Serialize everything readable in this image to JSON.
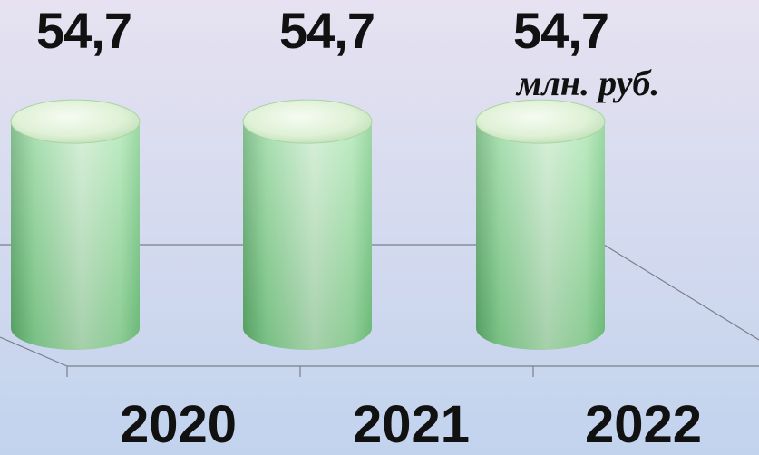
{
  "chart_data": {
    "type": "bar",
    "categories": [
      "2020",
      "2021",
      "2022"
    ],
    "values": [
      54.7,
      54.7,
      54.7
    ],
    "value_labels": [
      "54,7",
      "54,7",
      "54,7"
    ],
    "unit": "млн. руб.",
    "bar_color": "#8fdc9a",
    "grid": false,
    "title": "",
    "xlabel": "",
    "ylabel": ""
  }
}
